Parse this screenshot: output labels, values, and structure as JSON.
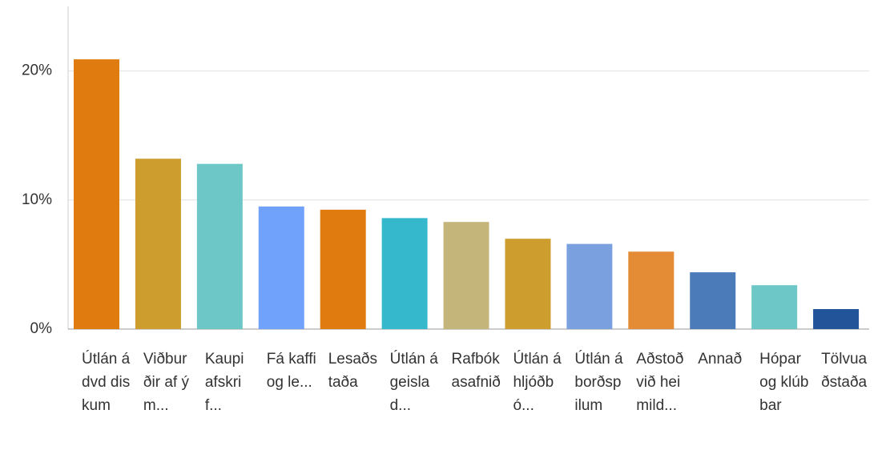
{
  "chart_data": {
    "type": "bar",
    "categories": [
      "Útlán á dvd diskum",
      "Viðburðir af ým...",
      "Kaupi afskrif...",
      "Fá kaffi og le...",
      "Lesaðstaða",
      "Útlán á geislad...",
      "Rafbókasafnið",
      "Útlán á hljóðbó...",
      "Útlán á borðspilum",
      "Aðstoð við heimild...",
      "Annað",
      "Hópar og klúbbar",
      "Tölvuaðstaða"
    ],
    "values": [
      20.9,
      13.2,
      12.8,
      9.5,
      9.25,
      8.6,
      8.3,
      7.0,
      6.6,
      6.0,
      4.4,
      3.4,
      1.55
    ],
    "colors": [
      "#e07b0f",
      "#cd9d2d",
      "#6cc7c6",
      "#71a2fb",
      "#e07b0f",
      "#35b8cc",
      "#c4b57b",
      "#cd9d2d",
      "#7ba0df",
      "#e38b35",
      "#4b7bb8",
      "#6cc7c6",
      "#22549a"
    ],
    "ylim": [
      0,
      25
    ],
    "yticks": [
      {
        "value": 0,
        "label": "0%"
      },
      {
        "value": 10,
        "label": "10%"
      },
      {
        "value": 20,
        "label": "20%"
      }
    ],
    "grid": true
  }
}
